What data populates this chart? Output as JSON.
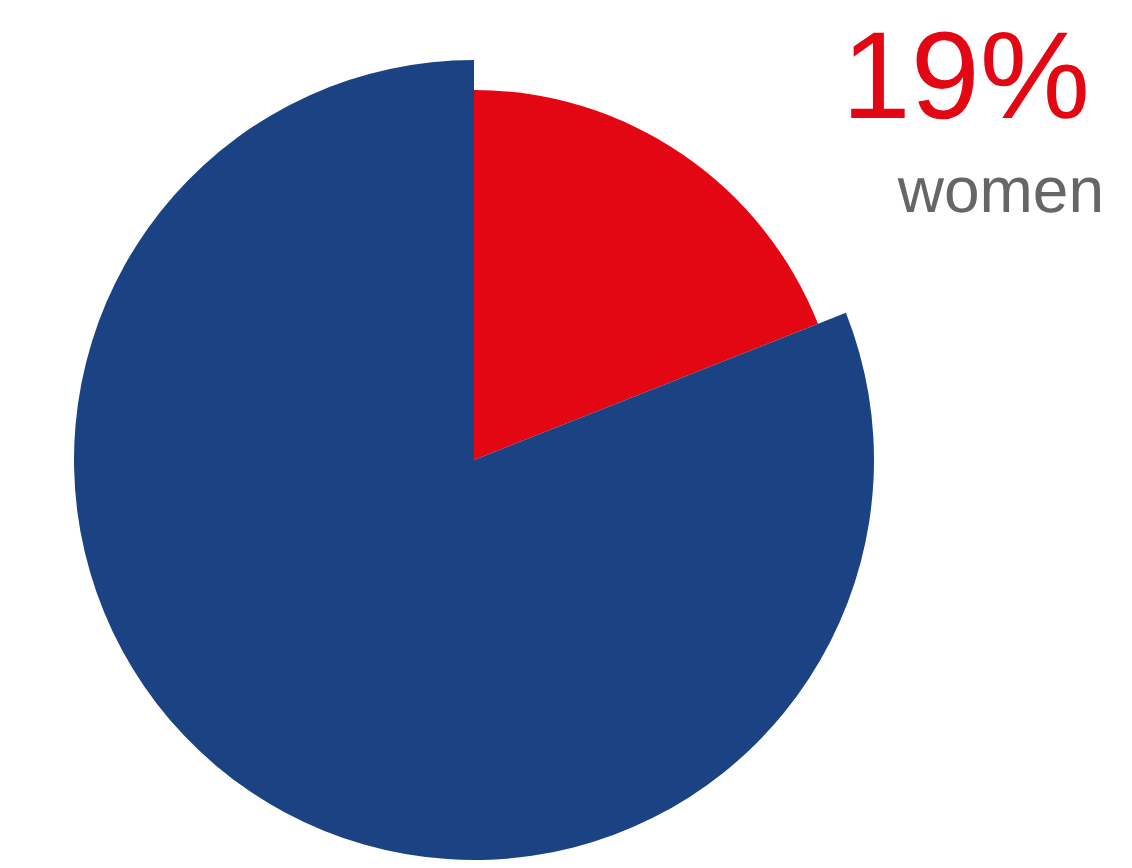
{
  "chart_data": {
    "type": "pie",
    "categories": [
      "women",
      null
    ],
    "values": [
      19,
      81
    ],
    "colors": [
      "#e30613",
      "#1b4282"
    ],
    "value_labels": [
      "19%",
      null
    ],
    "legend": false
  }
}
